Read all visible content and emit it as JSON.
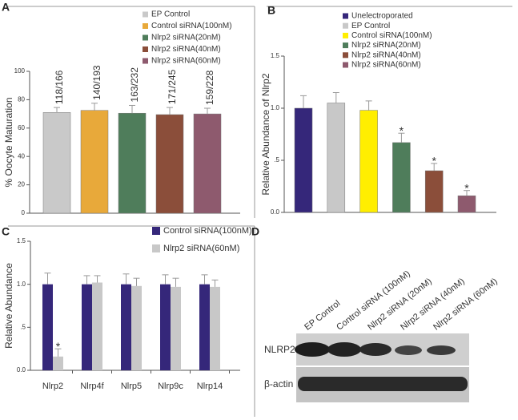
{
  "chart_data": [
    {
      "type": "bar",
      "panel": "A",
      "ylabel": "% Oocyte Maturation",
      "categories": [
        "EP Control",
        "Control siRNA(100nM)",
        "Nlrp2 siRNA(20nM)",
        "Nlrp2 siRNA(40nM)",
        "Nlrp2 siRNA(60nM)"
      ],
      "values": [
        71,
        72.5,
        70.5,
        69.5,
        70
      ],
      "errors": [
        3.5,
        5,
        5.5,
        5,
        4
      ],
      "colors": [
        "#c9c9c9",
        "#e8a93a",
        "#4f7d5b",
        "#8b4e3a",
        "#8e5a6e"
      ],
      "bar_labels": [
        "118/166",
        "140/193",
        "163/232",
        "171/245",
        "159/228"
      ],
      "ylim": [
        0,
        100
      ],
      "yticks": [
        0,
        20,
        40,
        60,
        80,
        100
      ]
    },
    {
      "type": "bar",
      "panel": "B",
      "ylabel": "Relative Abundance of Nlrp2",
      "categories": [
        "Unelectroporated",
        "EP Control",
        "Control siRNA(100nM)",
        "Nlrp2 siRNA(20nM)",
        "Nlrp2 siRNA(40nM)",
        "Nlrp2 siRNA(60nM)"
      ],
      "values": [
        1.0,
        1.05,
        0.98,
        0.67,
        0.4,
        0.16
      ],
      "errors": [
        0.12,
        0.1,
        0.09,
        0.09,
        0.07,
        0.05
      ],
      "colors": [
        "#35277a",
        "#c8c8c8",
        "#ffee00",
        "#4f7d5b",
        "#8b4e3a",
        "#8e5a6e"
      ],
      "significance": [
        null,
        null,
        null,
        "*",
        "*",
        "*"
      ],
      "ylim": [
        0,
        1.5
      ],
      "yticks": [
        {
          "value": 0,
          "label": "0.0"
        },
        {
          "value": 0.5,
          "label": ".5"
        },
        {
          "value": 1,
          "label": "1.0"
        },
        {
          "value": 1.5,
          "label": "1.5"
        }
      ]
    },
    {
      "type": "grouped_bar",
      "panel": "C",
      "ylabel": "Relative Abundance",
      "categories": [
        "Nlrp2",
        "Nlrp4f",
        "Nlrp5",
        "Nlrp9c",
        "Nlrp14"
      ],
      "series": [
        {
          "name": "Control siRNA(100nM)",
          "color": "#35277a",
          "values": [
            1.0,
            1.0,
            1.0,
            1.0,
            1.0
          ],
          "errors": [
            0.13,
            0.1,
            0.12,
            0.11,
            0.11
          ]
        },
        {
          "name": "Nlrp2 siRNA(60nM)",
          "color": "#c8c8c8",
          "values": [
            0.16,
            1.02,
            0.98,
            0.97,
            0.97
          ],
          "errors": [
            0.09,
            0.08,
            0.09,
            0.1,
            0.08
          ],
          "significance": [
            "*",
            null,
            null,
            null,
            null
          ]
        }
      ],
      "ylim": [
        0,
        1.5
      ],
      "yticks": [
        {
          "value": 0,
          "label": "0.0"
        },
        {
          "value": 0.5,
          "label": ".5"
        },
        {
          "value": 1,
          "label": "1.0"
        },
        {
          "value": 1.5,
          "label": "1.5"
        }
      ]
    }
  ],
  "blot": {
    "panel": "D",
    "lanes": [
      "EP Control",
      "Control siRNA (100nM)",
      "Nlrp2 siRNA (20nM)",
      "Nlrp2 siRNA (40nM)",
      "Nlrp2 siRNA (60nM)"
    ],
    "rows": [
      "NLRP2",
      "β-actin"
    ]
  }
}
